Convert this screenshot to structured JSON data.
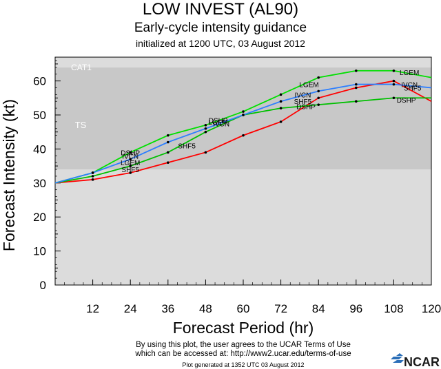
{
  "header": {
    "title": "LOW INVEST (AL90)",
    "subtitle": "Early-cycle intensity guidance",
    "initialized": "initialized at 1200 UTC, 03 August 2012"
  },
  "footer": {
    "terms_line1": "By using this plot, the user agrees to the UCAR Terms of Use",
    "terms_line2": "which can be accessed at: http://www2.ucar.edu/terms-of-use",
    "generated": "Plot generated at 1352 UTC   03 August 2012",
    "logo_text": "NCAR"
  },
  "chart_data": {
    "type": "line",
    "title": "LOW INVEST (AL90)",
    "xlabel": "Forecast Period (hr)",
    "ylabel": "Forecast Intensity (kt)",
    "xlim": [
      0,
      120
    ],
    "ylim": [
      0,
      67
    ],
    "xticks": [
      12,
      24,
      36,
      48,
      60,
      72,
      84,
      96,
      108,
      120
    ],
    "yticks": [
      0,
      10,
      20,
      30,
      40,
      50,
      60
    ],
    "bands": [
      {
        "label": "TS",
        "from": 34,
        "to": 64,
        "color": "#c8c8c8"
      },
      {
        "label": "CAT1",
        "from": 64,
        "to": 67,
        "color": "#dcdcdc"
      }
    ],
    "below_band_color": "#dcdcdc",
    "series": [
      {
        "name": "LGEM",
        "color": "#00e000",
        "x": [
          0,
          12,
          24,
          36,
          48,
          60,
          72,
          84,
          96,
          108,
          120
        ],
        "y": [
          30,
          33,
          39,
          44,
          47,
          51,
          56,
          61,
          63,
          63,
          61
        ]
      },
      {
        "name": "SHF5",
        "color": "#ff0000",
        "x": [
          0,
          12,
          24,
          36,
          48,
          60,
          72,
          84,
          96,
          108,
          120
        ],
        "y": [
          30,
          31,
          33,
          36,
          39,
          44,
          48,
          55,
          58,
          60,
          54
        ]
      },
      {
        "name": "DSHP",
        "color": "#00c000",
        "x": [
          0,
          12,
          24,
          36,
          48,
          60,
          72,
          84,
          96,
          108,
          120
        ],
        "y": [
          30,
          32,
          35,
          39,
          45,
          50,
          52,
          53,
          54,
          55,
          55
        ]
      },
      {
        "name": "IVCN",
        "color": "#2d7fff",
        "x": [
          0,
          12,
          24,
          36,
          48,
          60,
          72,
          84,
          96,
          108,
          120
        ],
        "y": [
          30,
          33,
          37,
          42,
          46,
          50,
          54,
          57,
          59,
          59,
          58
        ]
      }
    ],
    "data_labels": [
      {
        "text": "LGEM",
        "x": 24,
        "y": 36,
        "color": "#000"
      },
      {
        "text": "SHF5",
        "x": 24,
        "y": 34,
        "color": "#000"
      },
      {
        "text": "DSHP",
        "x": 24,
        "y": 39,
        "color": "#000"
      },
      {
        "text": "IVCN",
        "x": 24,
        "y": 38,
        "color": "#000"
      },
      {
        "text": "LGEM",
        "x": 52,
        "y": 48,
        "color": "#000"
      },
      {
        "text": "DSHP",
        "x": 52,
        "y": 48.5,
        "color": "#000"
      },
      {
        "text": "IVCN",
        "x": 53,
        "y": 47.5,
        "color": "#000"
      },
      {
        "text": "SHF5",
        "x": 42,
        "y": 41,
        "color": "#000"
      },
      {
        "text": "LGEM",
        "x": 81,
        "y": 59,
        "color": "#000"
      },
      {
        "text": "IVCN",
        "x": 79,
        "y": 56,
        "color": "#000"
      },
      {
        "text": "SHF5",
        "x": 79,
        "y": 54,
        "color": "#000"
      },
      {
        "text": "DSHP",
        "x": 80,
        "y": 52.5,
        "color": "#000"
      },
      {
        "text": "LGEM",
        "x": 113,
        "y": 62.5,
        "color": "#000"
      },
      {
        "text": "IVCN",
        "x": 113,
        "y": 59,
        "color": "#000"
      },
      {
        "text": "SHF5",
        "x": 114,
        "y": 58,
        "color": "#000"
      },
      {
        "text": "DSHP",
        "x": 112,
        "y": 54.5,
        "color": "#000"
      }
    ]
  }
}
